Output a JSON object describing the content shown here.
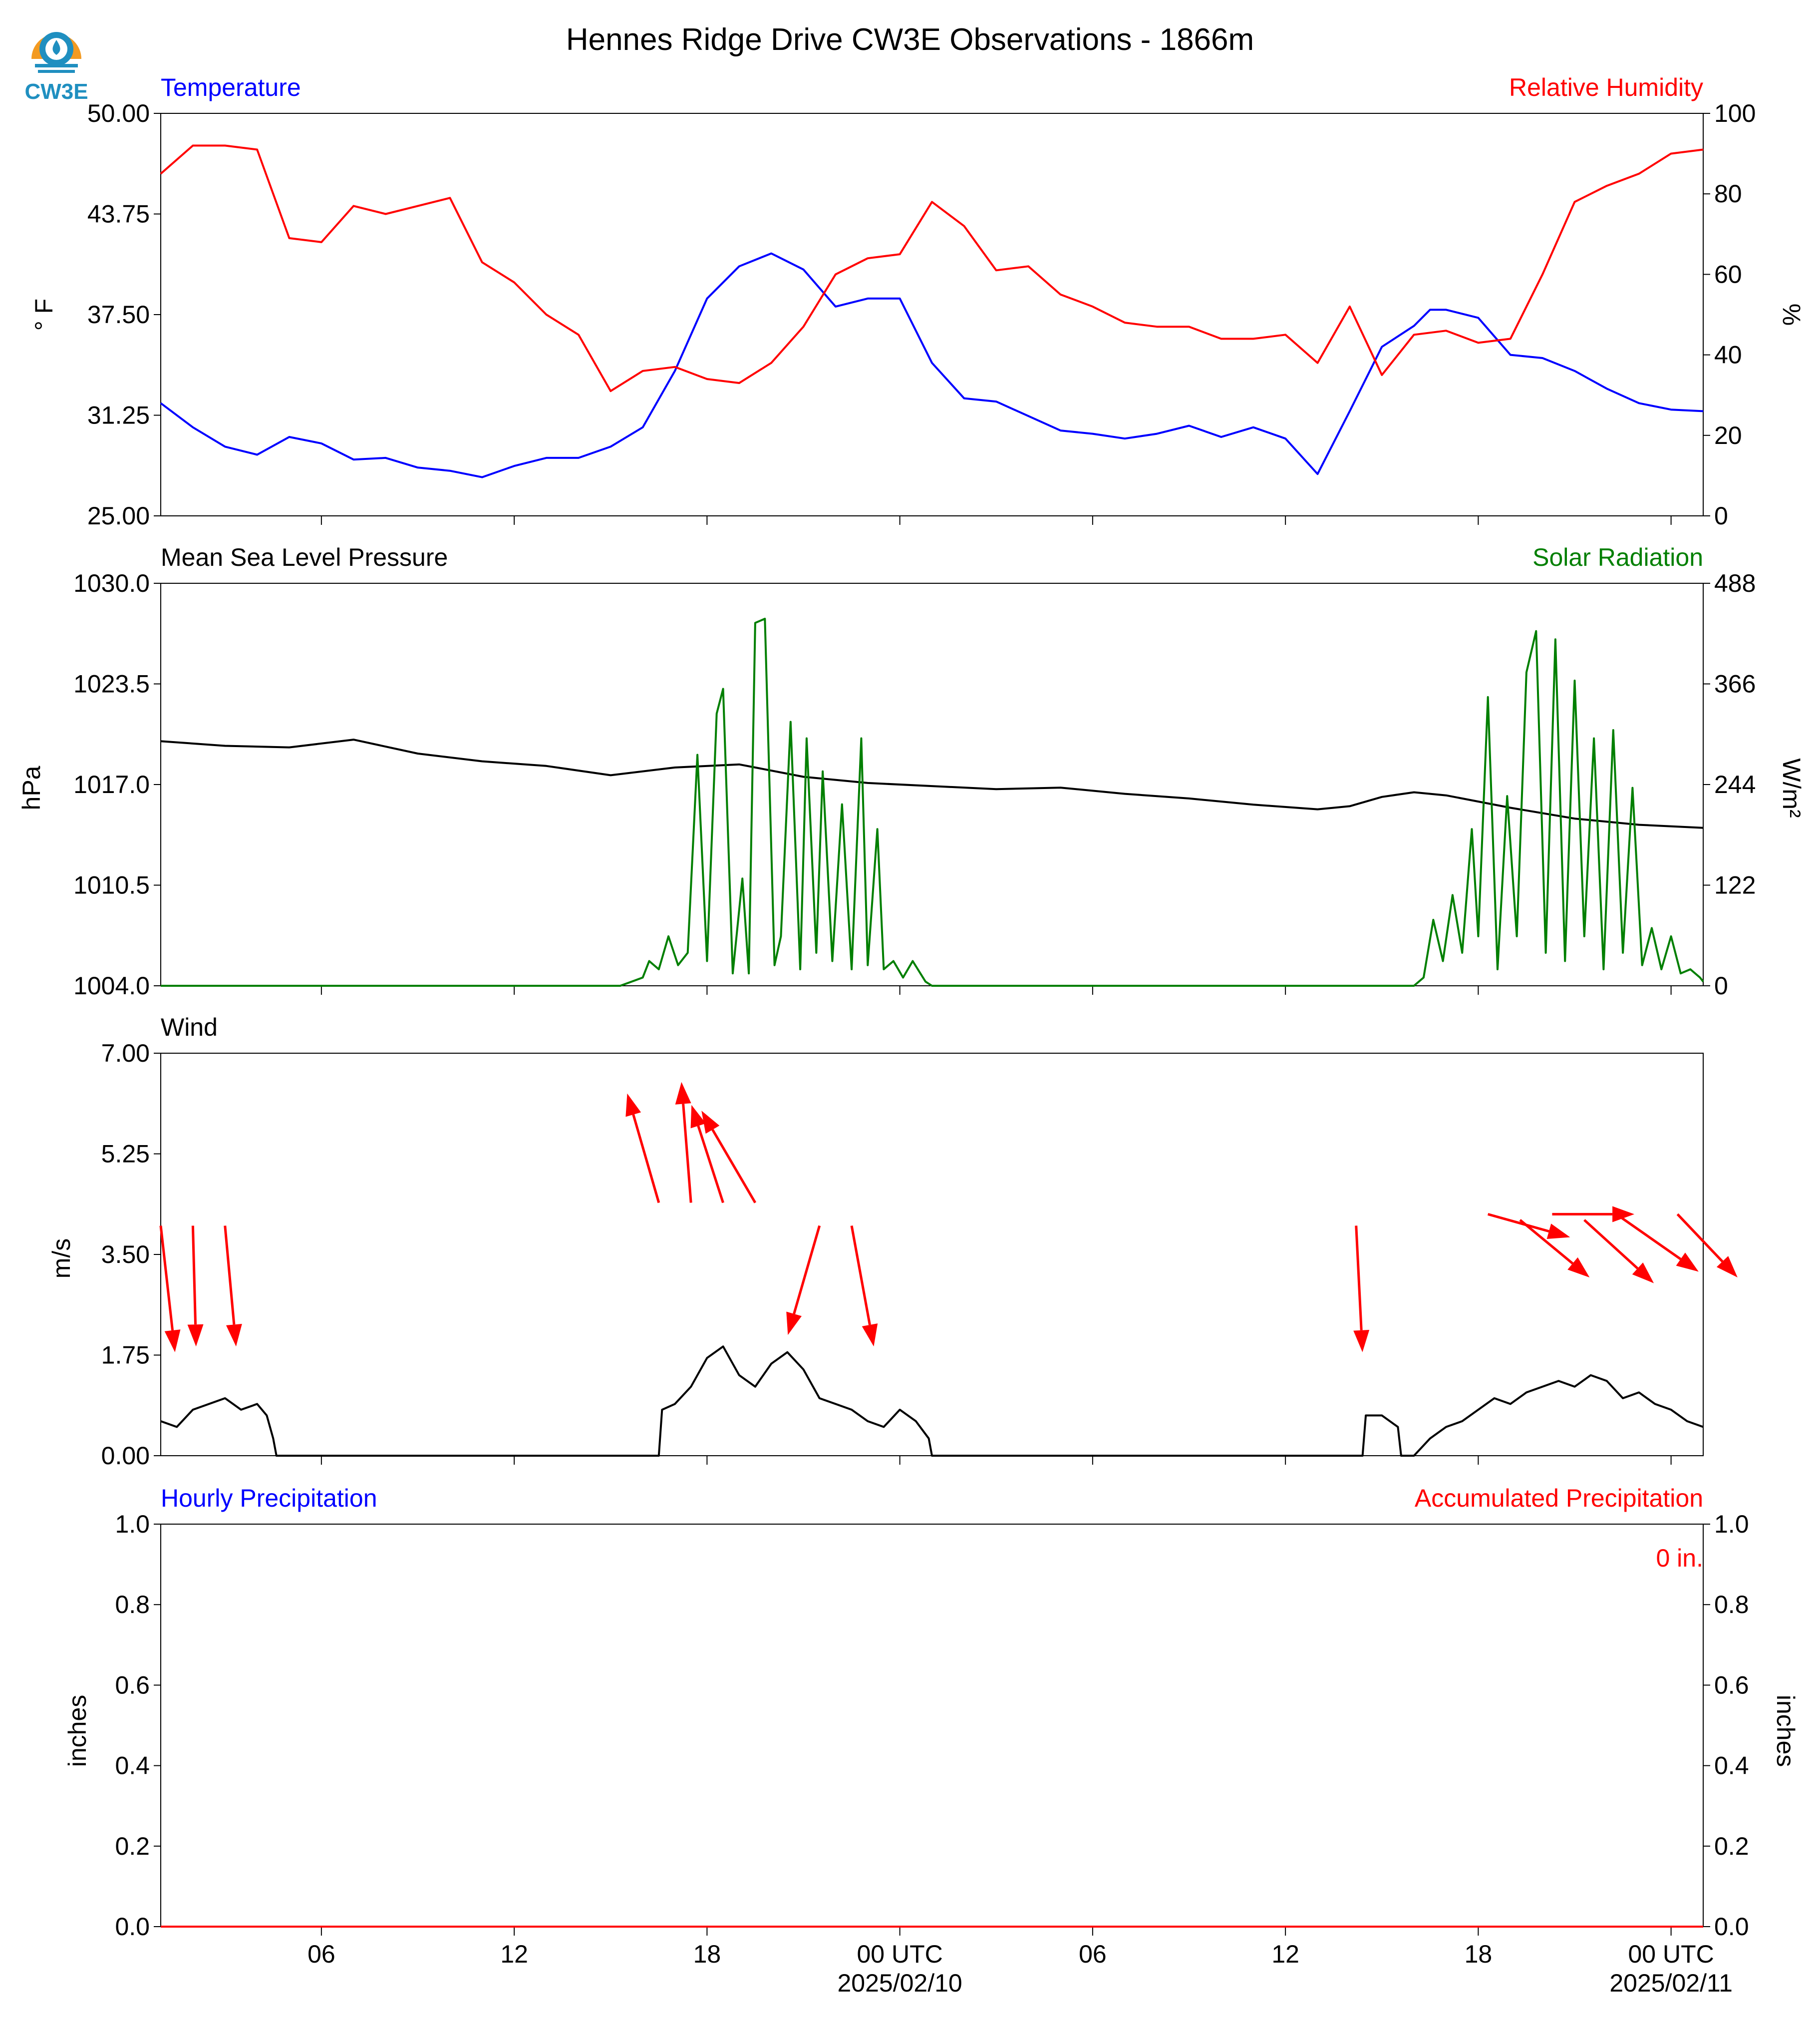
{
  "header": {
    "title": "Hennes Ridge Drive CW3E Observations - 1866m",
    "logo_text": "CW3E"
  },
  "colors": {
    "temperature": "#0000ff",
    "humidity": "#ff0000",
    "pressure": "#000000",
    "solar": "#007f00",
    "wind_speed": "#000000",
    "wind_arrow": "#ff0000",
    "precip_hourly": "#0000ff",
    "precip_accum": "#ff0000",
    "logo_orange": "#f39a21",
    "logo_blue": "#1f8fc0"
  },
  "x_axis": {
    "tick_hours": [
      6,
      12,
      18,
      24,
      30,
      36,
      42,
      48
    ],
    "tick_labels": [
      "06",
      "12",
      "18",
      "00 UTC",
      "06",
      "12",
      "18",
      "00 UTC"
    ],
    "date_labels": [
      "2025/02/10",
      "2025/02/11"
    ],
    "date_hours": [
      24,
      48
    ]
  },
  "panels": {
    "temp": {
      "left_title": "Temperature",
      "right_title": "Relative Humidity",
      "left_unit": "° F",
      "right_unit": "%",
      "left_ticks": [
        "50.00",
        "43.75",
        "37.50",
        "31.25",
        "25.00"
      ],
      "right_ticks": [
        "100",
        "80",
        "60",
        "40",
        "20",
        "0"
      ]
    },
    "pressure": {
      "left_title": "Mean Sea Level Pressure",
      "right_title": "Solar Radiation",
      "left_unit": "hPa",
      "right_unit": "W/m²",
      "left_ticks": [
        "1030.0",
        "1023.5",
        "1017.0",
        "1010.5",
        "1004.0"
      ],
      "right_ticks": [
        "488",
        "366",
        "244",
        "122",
        "0"
      ]
    },
    "wind": {
      "left_title": "Wind",
      "left_unit": "m/s",
      "left_ticks": [
        "7.00",
        "5.25",
        "3.50",
        "1.75",
        "0.00"
      ]
    },
    "precip": {
      "left_title": "Hourly Precipitation",
      "right_title": "Accumulated Precipitation",
      "left_unit": "inches",
      "right_unit": "inches",
      "left_ticks": [
        "1.0",
        "0.8",
        "0.6",
        "0.4",
        "0.2",
        "0.0"
      ],
      "right_ticks": [
        "1.0",
        "0.8",
        "0.6",
        "0.4",
        "0.2",
        "0.0"
      ],
      "total_label": "0 in."
    }
  },
  "chart_data": [
    {
      "type": "line",
      "title": "Temperature / Relative Humidity",
      "x_unit": "hours since 2025/02/09 01 UTC",
      "xlim": [
        1,
        49
      ],
      "ylabel": "° F",
      "ylim": [
        25,
        50
      ],
      "y2label": "%",
      "y2lim": [
        0,
        100
      ],
      "series": [
        {
          "name": "Temperature",
          "axis": "left",
          "x": [
            1,
            2,
            3,
            4,
            5,
            6,
            7,
            8,
            9,
            10,
            11,
            12,
            13,
            14,
            15,
            16,
            17,
            18,
            19,
            20,
            21,
            22,
            23,
            24,
            25,
            26,
            27,
            28,
            29,
            30,
            31,
            32,
            33,
            34,
            35,
            36,
            37,
            38,
            39,
            40,
            40.5,
            41,
            42,
            43,
            44,
            45,
            46,
            47,
            48,
            49
          ],
          "y": [
            32.0,
            30.5,
            29.3,
            28.8,
            29.9,
            29.5,
            28.5,
            28.6,
            28.0,
            27.8,
            27.4,
            28.1,
            28.6,
            28.6,
            29.3,
            30.5,
            34.0,
            38.5,
            40.5,
            41.3,
            40.3,
            38.0,
            38.5,
            38.5,
            34.5,
            32.3,
            32.1,
            31.2,
            30.3,
            30.1,
            29.8,
            30.1,
            30.6,
            29.9,
            30.5,
            29.8,
            27.6,
            31.5,
            35.5,
            36.8,
            37.8,
            37.8,
            37.3,
            35.0,
            34.8,
            34.0,
            32.9,
            32.0,
            31.6,
            31.5
          ]
        },
        {
          "name": "Relative Humidity",
          "axis": "right",
          "x": [
            1,
            2,
            3,
            4,
            4.5,
            5,
            6,
            7,
            8,
            9,
            10,
            11,
            12,
            13,
            14,
            15,
            16,
            17,
            18,
            19,
            20,
            21,
            22,
            23,
            24,
            25,
            26,
            27,
            28,
            29,
            30,
            31,
            32,
            33,
            34,
            35,
            36,
            37,
            38,
            39,
            40,
            41,
            42,
            43,
            44,
            45,
            46,
            47,
            48,
            49
          ],
          "y": [
            85,
            92,
            92,
            91,
            80,
            69,
            68,
            77,
            75,
            77,
            79,
            63,
            58,
            50,
            45,
            31,
            36,
            37,
            34,
            33,
            38,
            47,
            60,
            64,
            65,
            78,
            72,
            61,
            62,
            55,
            52,
            48,
            47,
            47,
            44,
            44,
            45,
            38,
            52,
            35,
            45,
            46,
            43,
            44,
            60,
            78,
            82,
            85,
            90,
            91
          ]
        }
      ]
    },
    {
      "type": "line",
      "title": "Mean Sea Level Pressure / Solar Radiation",
      "x_unit": "hours since 2025/02/09 01 UTC",
      "xlim": [
        1,
        49
      ],
      "ylabel": "hPa",
      "ylim": [
        1004,
        1030
      ],
      "y2label": "W/m²",
      "y2lim": [
        0,
        488
      ],
      "series": [
        {
          "name": "Mean Sea Level Pressure",
          "axis": "left",
          "x": [
            1,
            3,
            5,
            7,
            9,
            11,
            13,
            15,
            17,
            19,
            21,
            23,
            25,
            27,
            29,
            31,
            33,
            35,
            37,
            38,
            39,
            40,
            41,
            43,
            45,
            47,
            49
          ],
          "y": [
            1019.8,
            1019.5,
            1019.4,
            1019.9,
            1019.0,
            1018.5,
            1018.2,
            1017.6,
            1018.1,
            1018.3,
            1017.5,
            1017.1,
            1016.9,
            1016.7,
            1016.8,
            1016.4,
            1016.1,
            1015.7,
            1015.4,
            1015.6,
            1016.2,
            1016.5,
            1016.3,
            1015.5,
            1014.8,
            1014.4,
            1014.2
          ]
        },
        {
          "name": "Solar Radiation",
          "axis": "right",
          "x": [
            1,
            15.3,
            16,
            16.2,
            16.5,
            16.8,
            17.1,
            17.4,
            17.7,
            18,
            18.3,
            18.5,
            18.8,
            19.1,
            19.3,
            19.5,
            19.8,
            20.1,
            20.3,
            20.6,
            20.9,
            21.1,
            21.4,
            21.6,
            21.9,
            22.2,
            22.5,
            22.8,
            23,
            23.3,
            23.5,
            23.8,
            24.1,
            24.4,
            24.8,
            25,
            40,
            40.3,
            40.6,
            40.9,
            41.2,
            41.5,
            41.8,
            42,
            42.3,
            42.6,
            42.9,
            43.2,
            43.5,
            43.8,
            44.1,
            44.4,
            44.7,
            45,
            45.3,
            45.6,
            45.9,
            46.2,
            46.5,
            46.8,
            47.1,
            47.4,
            47.7,
            48,
            48.3,
            48.6,
            48.9,
            49
          ],
          "y": [
            0,
            0,
            10,
            30,
            20,
            60,
            25,
            40,
            280,
            30,
            330,
            360,
            15,
            130,
            15,
            440,
            445,
            25,
            60,
            320,
            20,
            300,
            40,
            260,
            30,
            220,
            20,
            300,
            25,
            190,
            20,
            30,
            10,
            30,
            5,
            0,
            0,
            10,
            80,
            30,
            110,
            40,
            190,
            60,
            350,
            20,
            230,
            60,
            380,
            430,
            40,
            420,
            30,
            370,
            60,
            300,
            20,
            310,
            40,
            240,
            25,
            70,
            20,
            60,
            15,
            20,
            10,
            5
          ]
        }
      ]
    },
    {
      "type": "line",
      "title": "Wind",
      "x_unit": "hours since 2025/02/09 01 UTC",
      "xlim": [
        1,
        49
      ],
      "ylabel": "m/s",
      "ylim": [
        0,
        7
      ],
      "series": [
        {
          "name": "Wind",
          "axis": "left",
          "x": [
            1,
            1.5,
            2,
            2.5,
            3,
            3.5,
            4,
            4.3,
            4.5,
            4.6,
            16.5,
            16.6,
            17,
            17.5,
            18,
            18.5,
            19,
            19.5,
            20,
            20.5,
            21,
            21.5,
            22,
            22.5,
            23,
            23.5,
            24,
            24.5,
            24.9,
            25,
            38.4,
            38.5,
            39,
            39.5,
            39.6,
            40,
            40.5,
            41,
            41.5,
            42,
            42.5,
            43,
            43.5,
            44,
            44.5,
            45,
            45.5,
            46,
            46.5,
            47,
            47.5,
            48,
            48.5,
            49
          ],
          "y": [
            0.6,
            0.5,
            0.8,
            0.9,
            1.0,
            0.8,
            0.9,
            0.7,
            0.3,
            0.0,
            0.0,
            0.8,
            0.9,
            1.2,
            1.7,
            1.9,
            1.4,
            1.2,
            1.6,
            1.8,
            1.5,
            1.0,
            0.9,
            0.8,
            0.6,
            0.5,
            0.8,
            0.6,
            0.3,
            0.0,
            0.0,
            0.7,
            0.7,
            0.5,
            0.0,
            0.0,
            0.3,
            0.5,
            0.6,
            0.8,
            1.0,
            0.9,
            1.1,
            1.2,
            1.3,
            1.2,
            1.4,
            1.3,
            1.0,
            1.1,
            0.9,
            0.8,
            0.6,
            0.5
          ]
        }
      ],
      "arrows": {
        "note": "wind direction vectors (red)",
        "x": [
          1,
          2,
          3,
          16.5,
          17.5,
          18.5,
          19.5,
          21.5,
          22.5,
          38.2,
          42.3,
          43.3,
          44.3,
          45.3,
          46.3,
          48.2
        ],
        "y": [
          4.0,
          4.0,
          4.0,
          4.4,
          4.4,
          4.4,
          4.4,
          4.0,
          4.0,
          4.0,
          4.2,
          4.1,
          4.2,
          4.1,
          4.2,
          4.2
        ],
        "u": [
          0.45,
          0.1,
          0.35,
          -1.0,
          -0.3,
          -1.0,
          -1.7,
          -1.0,
          0.7,
          0.2,
          2.6,
          2.2,
          2.6,
          2.2,
          2.6,
          1.9
        ],
        "v": [
          -2.2,
          -2.1,
          -2.1,
          1.9,
          2.1,
          1.7,
          1.6,
          -1.9,
          -2.1,
          -2.2,
          -0.4,
          -1.0,
          0.0,
          -1.1,
          -1.0,
          -1.1
        ]
      }
    },
    {
      "type": "line",
      "title": "Hourly Precipitation / Accumulated Precipitation",
      "x_unit": "hours since 2025/02/09 01 UTC",
      "xlim": [
        1,
        49
      ],
      "ylabel": "inches",
      "ylim": [
        0,
        1
      ],
      "y2label": "inches",
      "y2lim": [
        0,
        1
      ],
      "series": [
        {
          "name": "Hourly Precipitation",
          "axis": "left",
          "x": [
            1,
            49
          ],
          "y": [
            0,
            0
          ]
        },
        {
          "name": "Accumulated Precipitation",
          "axis": "right",
          "x": [
            1,
            49
          ],
          "y": [
            0,
            0
          ]
        }
      ],
      "annotations": [
        "0 in."
      ]
    }
  ]
}
